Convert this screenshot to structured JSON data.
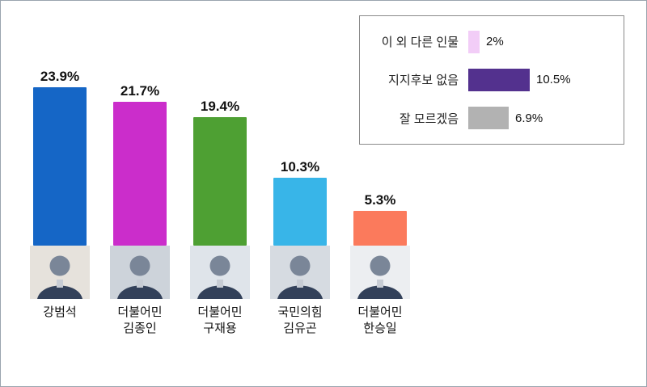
{
  "chart_data": {
    "type": "bar",
    "title": "",
    "xlabel": "",
    "ylabel": "",
    "ylim": [
      0,
      25
    ],
    "grid": false,
    "legend_position": "top-right",
    "categories": [
      "강범석",
      "더불어민 김종인",
      "더불어민 구재용",
      "국민의힘 김유곤",
      "더불어민 한승일"
    ],
    "values": [
      23.9,
      21.7,
      19.4,
      10.3,
      5.3
    ],
    "candidates": [
      {
        "lines": [
          "강범석"
        ],
        "value": 23.9,
        "value_label": "23.9%",
        "color": "#1566c6",
        "photo_bg": "#e6e2dc"
      },
      {
        "lines": [
          "더불어민",
          "김종인"
        ],
        "value": 21.7,
        "value_label": "21.7%",
        "color": "#cb2dcb",
        "photo_bg": "#cdd3da"
      },
      {
        "lines": [
          "더불어민",
          "구재용"
        ],
        "value": 19.4,
        "value_label": "19.4%",
        "color": "#4ea033",
        "photo_bg": "#dfe4ea"
      },
      {
        "lines": [
          "국민의힘",
          "김유곤"
        ],
        "value": 10.3,
        "value_label": "10.3%",
        "color": "#38b5e8",
        "photo_bg": "#d6dbe1"
      },
      {
        "lines": [
          "더불어민",
          "한승일"
        ],
        "value": 5.3,
        "value_label": "5.3%",
        "color": "#fb7a5c",
        "photo_bg": "#eceef1"
      }
    ],
    "legend": [
      {
        "label": "이 외 다른 인물",
        "value": 2,
        "value_label": "2%",
        "color": "#f2cdf7"
      },
      {
        "label": "지지후보 없음",
        "value": 10.5,
        "value_label": "10.5%",
        "color": "#53318e"
      },
      {
        "label": "잘 모르겠음",
        "value": 6.9,
        "value_label": "6.9%",
        "color": "#b2b2b2"
      }
    ]
  }
}
